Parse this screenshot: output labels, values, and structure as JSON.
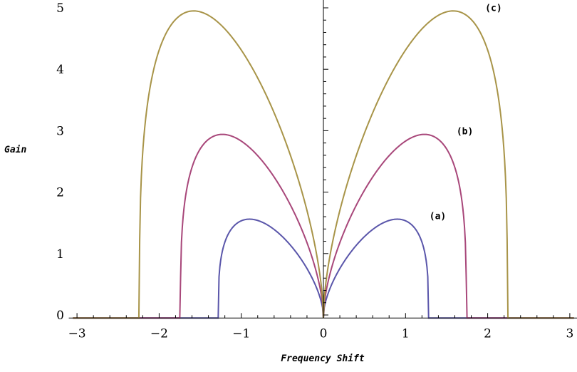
{
  "chart_data": {
    "type": "line",
    "title": "",
    "xlabel": "Frequency Shift",
    "ylabel": "Gain",
    "xlim": [
      -3.1,
      3.1
    ],
    "ylim": [
      -0.05,
      5.1
    ],
    "xticks": [
      -3,
      -2,
      -1,
      0,
      1,
      2,
      3
    ],
    "xtick_labels": [
      "−3",
      "−2",
      "−1",
      "0",
      "1",
      "2",
      "3"
    ],
    "yticks": [
      0,
      1,
      2,
      3,
      4,
      5
    ],
    "ytick_labels": [
      "0",
      "1",
      "2",
      "3",
      "4",
      "5"
    ],
    "grid": false,
    "series": [
      {
        "name": "(a)",
        "color": "#5a56aa",
        "cutoff": 1.28,
        "peak": [
          0.9,
          1.56
        ]
      },
      {
        "name": "(b)",
        "color": "#a8477a",
        "cutoff": 1.74,
        "peak": [
          1.23,
          2.94
        ]
      },
      {
        "name": "(c)",
        "color": "#a89448",
        "cutoff": 2.24,
        "peak": [
          1.58,
          4.95
        ]
      }
    ]
  }
}
